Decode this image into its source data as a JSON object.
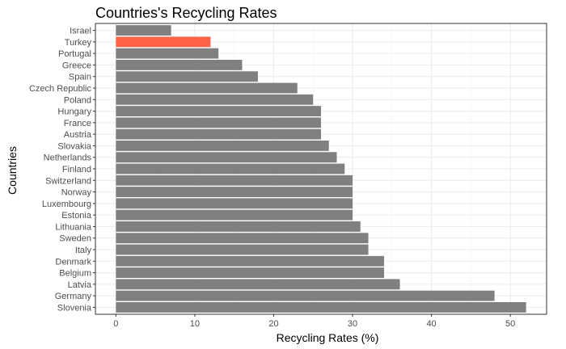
{
  "chart_data": {
    "type": "bar",
    "orientation": "horizontal",
    "title": "Countries's Recycling Rates",
    "xlabel": "Recycling Rates (%)",
    "ylabel": "Countries",
    "xlim": [
      -2.6,
      54.6
    ],
    "xticks": [
      0,
      10,
      20,
      30,
      40,
      50
    ],
    "grid": true,
    "bar_color": "#808080",
    "highlight_color": "#ff6347",
    "highlight": "Turkey",
    "categories": [
      "Israel",
      "Turkey",
      "Portugal",
      "Greece",
      "Spain",
      "Czech Republic",
      "Poland",
      "Hungary",
      "France",
      "Austria",
      "Slovakia",
      "Netherlands",
      "Finland",
      "Switzerland",
      "Norway",
      "Luxembourg",
      "Estonia",
      "Lithuania",
      "Sweden",
      "Italy",
      "Denmark",
      "Belgium",
      "Latvia",
      "Germany",
      "Slovenia"
    ],
    "values": [
      7,
      12,
      13,
      16,
      18,
      23,
      25,
      26,
      26,
      26,
      27,
      28,
      29,
      30,
      30,
      30,
      30,
      31,
      32,
      32,
      34,
      34,
      36,
      48,
      52
    ]
  }
}
